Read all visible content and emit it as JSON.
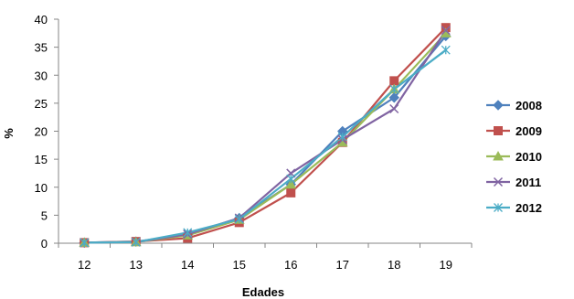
{
  "chart_data": {
    "type": "line",
    "title": "",
    "xlabel": "Edades",
    "ylabel": "%",
    "categories": [
      "12",
      "13",
      "14",
      "15",
      "16",
      "17",
      "18",
      "19"
    ],
    "ylim": [
      0,
      40
    ],
    "yticks": [
      "0",
      "5",
      "10",
      "15",
      "20",
      "25",
      "30",
      "35",
      "40"
    ],
    "grid": false,
    "legend_position": "right",
    "series": [
      {
        "name": "2008",
        "color": "#4F81BD",
        "marker": "diamond",
        "values": [
          0.1,
          0.3,
          1.5,
          4.5,
          10.5,
          20.0,
          26.0,
          37.0
        ]
      },
      {
        "name": "2009",
        "color": "#C0504D",
        "marker": "square",
        "values": [
          0.1,
          0.3,
          0.9,
          3.7,
          9.0,
          18.0,
          29.0,
          38.5
        ]
      },
      {
        "name": "2010",
        "color": "#9BBB59",
        "marker": "triangle",
        "values": [
          0.1,
          0.2,
          1.4,
          4.2,
          10.5,
          18.0,
          27.5,
          37.5
        ]
      },
      {
        "name": "2011",
        "color": "#8064A2",
        "marker": "x",
        "values": [
          0.1,
          0.2,
          1.6,
          4.5,
          12.5,
          18.5,
          24.0,
          38.0
        ]
      },
      {
        "name": "2012",
        "color": "#4BACC6",
        "marker": "star",
        "values": [
          0.1,
          0.2,
          1.9,
          4.3,
          11.5,
          19.0,
          27.5,
          34.5
        ]
      }
    ]
  }
}
